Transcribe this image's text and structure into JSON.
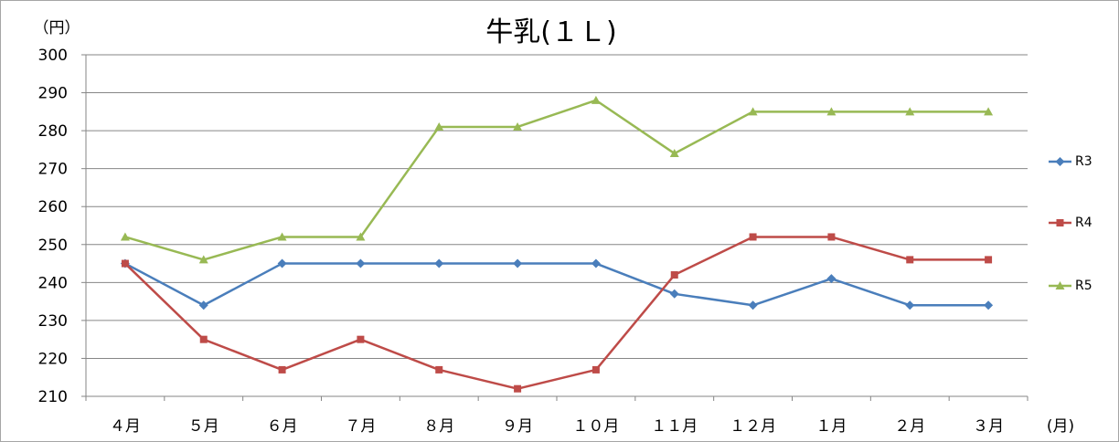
{
  "chart_data": {
    "type": "line",
    "title": "牛乳(１Ｌ)",
    "ylabel": "（円）",
    "xlabel": "(月)",
    "categories": [
      "４月",
      "５月",
      "６月",
      "７月",
      "８月",
      "９月",
      "１０月",
      "１１月",
      "１２月",
      "１月",
      "２月",
      "３月"
    ],
    "ylim": [
      210,
      300
    ],
    "yticks": [
      210,
      220,
      230,
      240,
      250,
      260,
      270,
      280,
      290,
      300
    ],
    "grid": true,
    "legend_position": "right",
    "series": [
      {
        "name": "R3",
        "color": "#4a7ebb",
        "marker": "diamond",
        "values": [
          245,
          234,
          245,
          245,
          245,
          245,
          245,
          237,
          234,
          241,
          234,
          234
        ]
      },
      {
        "name": "R4",
        "color": "#be4b48",
        "marker": "square",
        "values": [
          245,
          225,
          217,
          225,
          217,
          212,
          217,
          242,
          252,
          252,
          246,
          246
        ]
      },
      {
        "name": "R5",
        "color": "#98b954",
        "marker": "triangle",
        "values": [
          252,
          246,
          252,
          252,
          281,
          281,
          288,
          274,
          285,
          285,
          285,
          285
        ]
      }
    ]
  }
}
